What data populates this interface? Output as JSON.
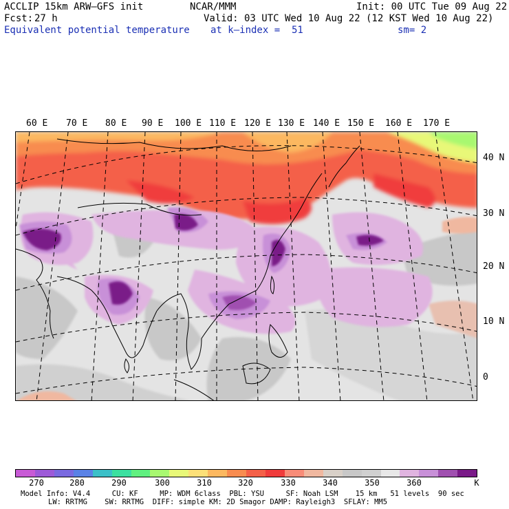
{
  "header": {
    "model": "ACCLIP 15km ARW–GFS init",
    "center": "NCAR/MMM",
    "init": "Init: 00 UTC Tue 09 Aug 22",
    "fcst_label": "Fcst:",
    "fcst_value": "27 h",
    "valid": "Valid: 03 UTC Wed 10 Aug 22 (12 KST Wed 10 Aug 22)",
    "field": "Equivalent potential temperature",
    "level": "at k–index =  51",
    "smooth": "sm= 2"
  },
  "map": {
    "lon_labels": [
      "60 E",
      "70 E",
      "80 E",
      "90 E",
      "100 E",
      "110 E",
      "120 E",
      "130 E",
      "140 E",
      "150 E",
      "160 E",
      "170 E"
    ],
    "lat_labels": [
      "40 N",
      "30 N",
      "20 N",
      "10 N",
      "0"
    ]
  },
  "colorbar": {
    "colors": [
      "#c85bd6",
      "#9d5ad8",
      "#7a6ae0",
      "#5a82e6",
      "#3cc0c8",
      "#3ce0a0",
      "#60f080",
      "#a8f870",
      "#e8f878",
      "#fce078",
      "#fcb860",
      "#f88c50",
      "#f46048",
      "#f03c3c",
      "#f88c78",
      "#f0b8a0",
      "#d8d0c8",
      "#c8c8c8",
      "#d0d0d0",
      "#e8e8e8",
      "#e0b4e0",
      "#c890d8",
      "#a050b0",
      "#7a1a88"
    ],
    "labels": [
      "270",
      "280",
      "290",
      "300",
      "310",
      "320",
      "330",
      "340",
      "350",
      "360",
      "K"
    ]
  },
  "footer": {
    "line1": "Model Info: V4.4     CU: KF     MP: WDM 6class  PBL: YSU     SF: Noah LSM    15 km   51 levels  90 sec",
    "line2": "LW: RRTMG    SW: RRTMG  DIFF: simple KM: 2D Smagor DAMP: Rayleigh3  SFLAY: MM5"
  }
}
